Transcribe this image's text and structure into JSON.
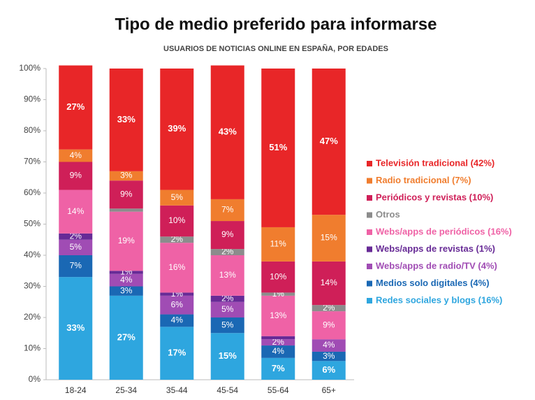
{
  "chart_data": {
    "type": "stacked_bar",
    "title": "Tipo de medio preferido para informarse",
    "subtitle": "USUARIOS DE NOTICIAS ONLINE EN ESPAÑA, POR EDADES",
    "categories": [
      "18-24",
      "25-34",
      "35-44",
      "45-54",
      "55-64",
      "65+"
    ],
    "ylim": [
      0,
      100
    ],
    "yticks": [
      {
        "value": 0,
        "label": "0%"
      },
      {
        "value": 10,
        "label": "10%"
      },
      {
        "value": 20,
        "label": "20%"
      },
      {
        "value": 30,
        "label": "30%"
      },
      {
        "value": 40,
        "label": "40%"
      },
      {
        "value": 50,
        "label": "50%"
      },
      {
        "value": 60,
        "label": "60%"
      },
      {
        "value": 70,
        "label": "70%"
      },
      {
        "value": 80,
        "label": "80%"
      },
      {
        "value": 90,
        "label": "90%"
      },
      {
        "value": 100,
        "label": "100%"
      }
    ],
    "grid": false,
    "legend": "right",
    "series": [
      {
        "name": "Redes sociales y blogs (16%)",
        "color": "#2ea6df",
        "values": [
          33,
          27,
          17,
          15,
          7,
          6
        ],
        "value_labels": [
          "33%",
          "27%",
          "17%",
          "15%",
          "7%",
          "6%"
        ]
      },
      {
        "name": "Medios solo digitales (4%)",
        "color": "#1a68b4",
        "values": [
          7,
          3,
          4,
          5,
          4,
          3
        ],
        "value_labels": [
          "7%",
          "3%",
          "4%",
          "5%",
          "4%",
          "3%"
        ]
      },
      {
        "name": "Webs/apps de radio/TV (4%)",
        "color": "#a04cb4",
        "values": [
          5,
          4,
          6,
          5,
          2,
          4
        ],
        "value_labels": [
          "5%",
          "4%",
          "6%",
          "5%",
          "2%",
          "4%"
        ]
      },
      {
        "name": "Webs/apps de revistas (1%)",
        "color": "#672a96",
        "values": [
          2,
          1,
          1,
          2,
          1,
          0
        ],
        "value_labels": [
          "2%",
          "1%",
          "1%",
          "2%",
          null,
          null
        ]
      },
      {
        "name": "Webs/apps de periódicos (16%)",
        "color": "#ef62a6",
        "values": [
          14,
          19,
          16,
          13,
          13,
          9
        ],
        "value_labels": [
          "14%",
          "19%",
          "16%",
          "13%",
          "13%",
          "9%"
        ]
      },
      {
        "name": "Otros",
        "color": "#8c8c8c",
        "values": [
          0,
          1,
          2,
          2,
          1,
          2
        ],
        "value_labels": [
          null,
          null,
          "2%",
          "2%",
          "1%",
          "2%"
        ]
      },
      {
        "name": "Periódicos y revistas (10%)",
        "color": "#cf1f58",
        "values": [
          9,
          9,
          10,
          9,
          10,
          14
        ],
        "value_labels": [
          "9%",
          "9%",
          "10%",
          "9%",
          "10%",
          "14%"
        ]
      },
      {
        "name": "Radio tradicional (7%)",
        "color": "#f07d2e",
        "values": [
          4,
          3,
          5,
          7,
          11,
          15
        ],
        "value_labels": [
          "4%",
          "3%",
          "5%",
          "7%",
          "11%",
          "15%"
        ]
      },
      {
        "name": "Televisión tradicional (42%)",
        "color": "#e82628",
        "values": [
          27,
          33,
          39,
          43,
          51,
          47
        ],
        "value_labels": [
          "27%",
          "33%",
          "39%",
          "43%",
          "51%",
          "47%"
        ]
      }
    ]
  }
}
